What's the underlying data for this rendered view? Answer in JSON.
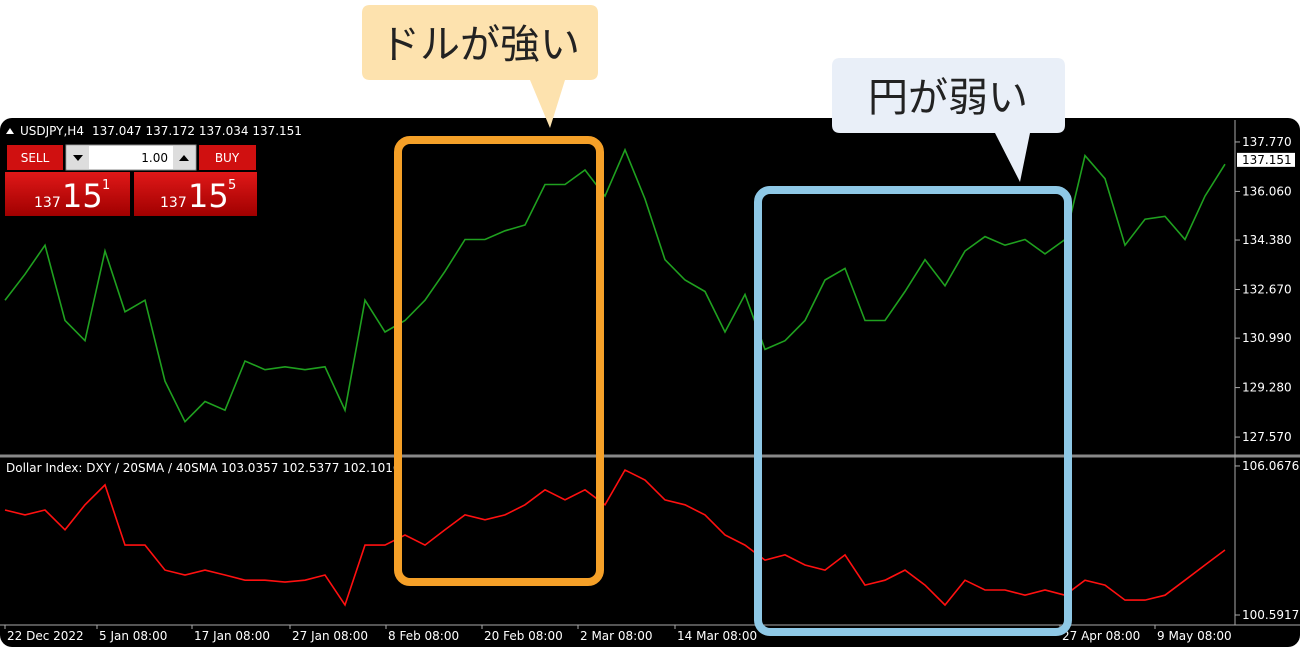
{
  "chart_data": [
    {
      "type": "line",
      "title": "USDJPY,H4",
      "ohlc_text": "137.047 137.172 137.034 137.151",
      "color": "#1fa01f",
      "xlim": [
        0,
        61
      ],
      "ylim": [
        126.95,
        138.46
      ],
      "yticks": [
        {
          "value": 137.77,
          "label": "137.770"
        },
        {
          "value": 136.06,
          "label": "136.060"
        },
        {
          "value": 134.38,
          "label": "134.380"
        },
        {
          "value": 132.67,
          "label": "132.670"
        },
        {
          "value": 130.99,
          "label": "130.990"
        },
        {
          "value": 129.28,
          "label": "129.280"
        },
        {
          "value": 127.57,
          "label": "127.570"
        }
      ],
      "last_price": 137.151,
      "values": [
        132.3,
        133.2,
        134.2,
        131.6,
        130.9,
        134.0,
        131.9,
        132.3,
        129.5,
        128.1,
        128.8,
        128.5,
        130.2,
        129.9,
        130.0,
        129.9,
        130.0,
        128.5,
        132.3,
        131.2,
        131.6,
        132.3,
        133.3,
        134.4,
        134.4,
        134.7,
        134.9,
        136.3,
        136.3,
        136.8,
        135.9,
        137.5,
        135.8,
        133.7,
        133.0,
        132.6,
        131.2,
        132.5,
        130.6,
        130.9,
        131.6,
        133.0,
        133.4,
        131.6,
        131.6,
        132.6,
        133.7,
        132.8,
        134.0,
        134.5,
        134.2,
        134.4,
        133.9,
        134.4,
        137.3,
        136.5,
        134.2,
        135.1,
        135.2,
        134.4,
        135.9,
        137.0
      ]
    },
    {
      "type": "line",
      "title": "Dollar Index: DXY / 20SMA / 40SMA 103.0357 102.5377 102.1016",
      "color": "#ff1010",
      "xlim": [
        0,
        61
      ],
      "ylim": [
        100.334,
        106.36
      ],
      "yticks": [
        106.0676,
        100.5917
      ],
      "xticks": [
        {
          "value": 0,
          "label": "22 Dec 2022"
        },
        {
          "value": 4.6,
          "label": "5 Jan 08:00"
        },
        {
          "value": 9.35,
          "label": "17 Jan 08:00"
        },
        {
          "value": 14.25,
          "label": "27 Jan 08:00"
        },
        {
          "value": 19.05,
          "label": "8 Feb 08:00"
        },
        {
          "value": 23.85,
          "label": "20 Feb 08:00"
        },
        {
          "value": 28.65,
          "label": "2 Mar 08:00"
        },
        {
          "value": 33.5,
          "label": "14 Mar 08:00"
        },
        {
          "value": 52.75,
          "label": "27 Apr 08:00"
        },
        {
          "value": 57.5,
          "label": "9 May 08:00"
        }
      ],
      "values": [
        104.45,
        104.27,
        104.45,
        103.72,
        104.64,
        105.37,
        103.16,
        103.16,
        102.24,
        102.06,
        102.24,
        102.06,
        101.87,
        101.87,
        101.8,
        101.87,
        102.06,
        100.96,
        103.16,
        103.16,
        103.53,
        103.16,
        103.72,
        104.27,
        104.09,
        104.27,
        104.64,
        105.19,
        104.82,
        105.19,
        104.64,
        105.92,
        105.55,
        104.82,
        104.64,
        104.27,
        103.53,
        103.16,
        102.61,
        102.8,
        102.43,
        102.24,
        102.8,
        101.69,
        101.87,
        102.24,
        101.69,
        100.96,
        101.87,
        101.51,
        101.51,
        101.32,
        101.51,
        101.32,
        101.87,
        101.69,
        101.14,
        101.14,
        101.32,
        101.87,
        102.43,
        102.98
      ]
    }
  ],
  "trade_panel": {
    "sell": "SELL",
    "buy": "BUY",
    "lots": "1.00",
    "bid": {
      "big": "137",
      "mid": "15",
      "small": "1"
    },
    "ask": {
      "big": "137",
      "mid": "15",
      "small": "5"
    }
  },
  "callouts": {
    "dollar": "ドルが強い",
    "yen": "円が弱い"
  }
}
